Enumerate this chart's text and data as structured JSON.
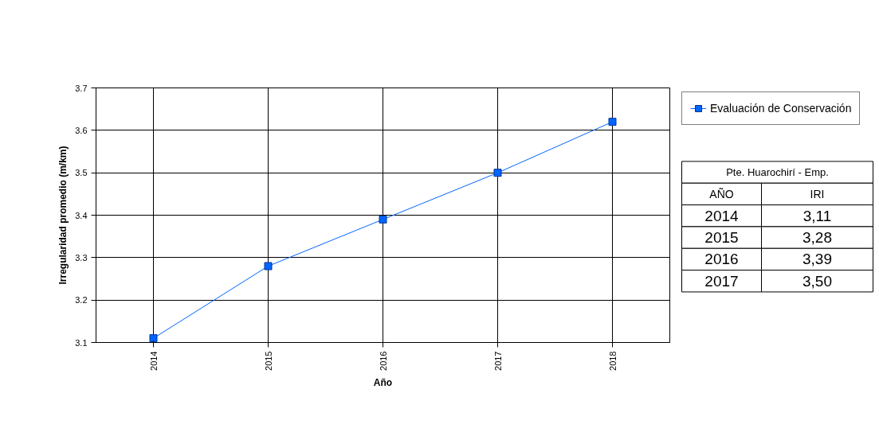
{
  "chart_data": {
    "type": "line",
    "xlabel": "Año",
    "ylabel": "Irregularidad promedio (m/km)",
    "categories": [
      "2014",
      "2015",
      "2016",
      "2017",
      "2018"
    ],
    "series": [
      {
        "name": "Evaluación de Conservación",
        "color": "#0066ff",
        "values": [
          3.11,
          3.28,
          3.39,
          3.5,
          3.62
        ]
      }
    ],
    "annotations": [
      "Pte. Huarochirí - Emp.",
      "AÑO",
      "IRI",
      "2014",
      "3,11",
      "2015",
      "3,28",
      "2016",
      "3,39",
      "2017",
      "3,50"
    ],
    "ylim": [
      3.1,
      3.7
    ],
    "yticks": [
      3.1,
      3.2,
      3.3,
      3.4,
      3.5,
      3.6,
      3.7
    ],
    "grid": true,
    "legend": "top right",
    "marker": "square",
    "line_style": "solid"
  }
}
